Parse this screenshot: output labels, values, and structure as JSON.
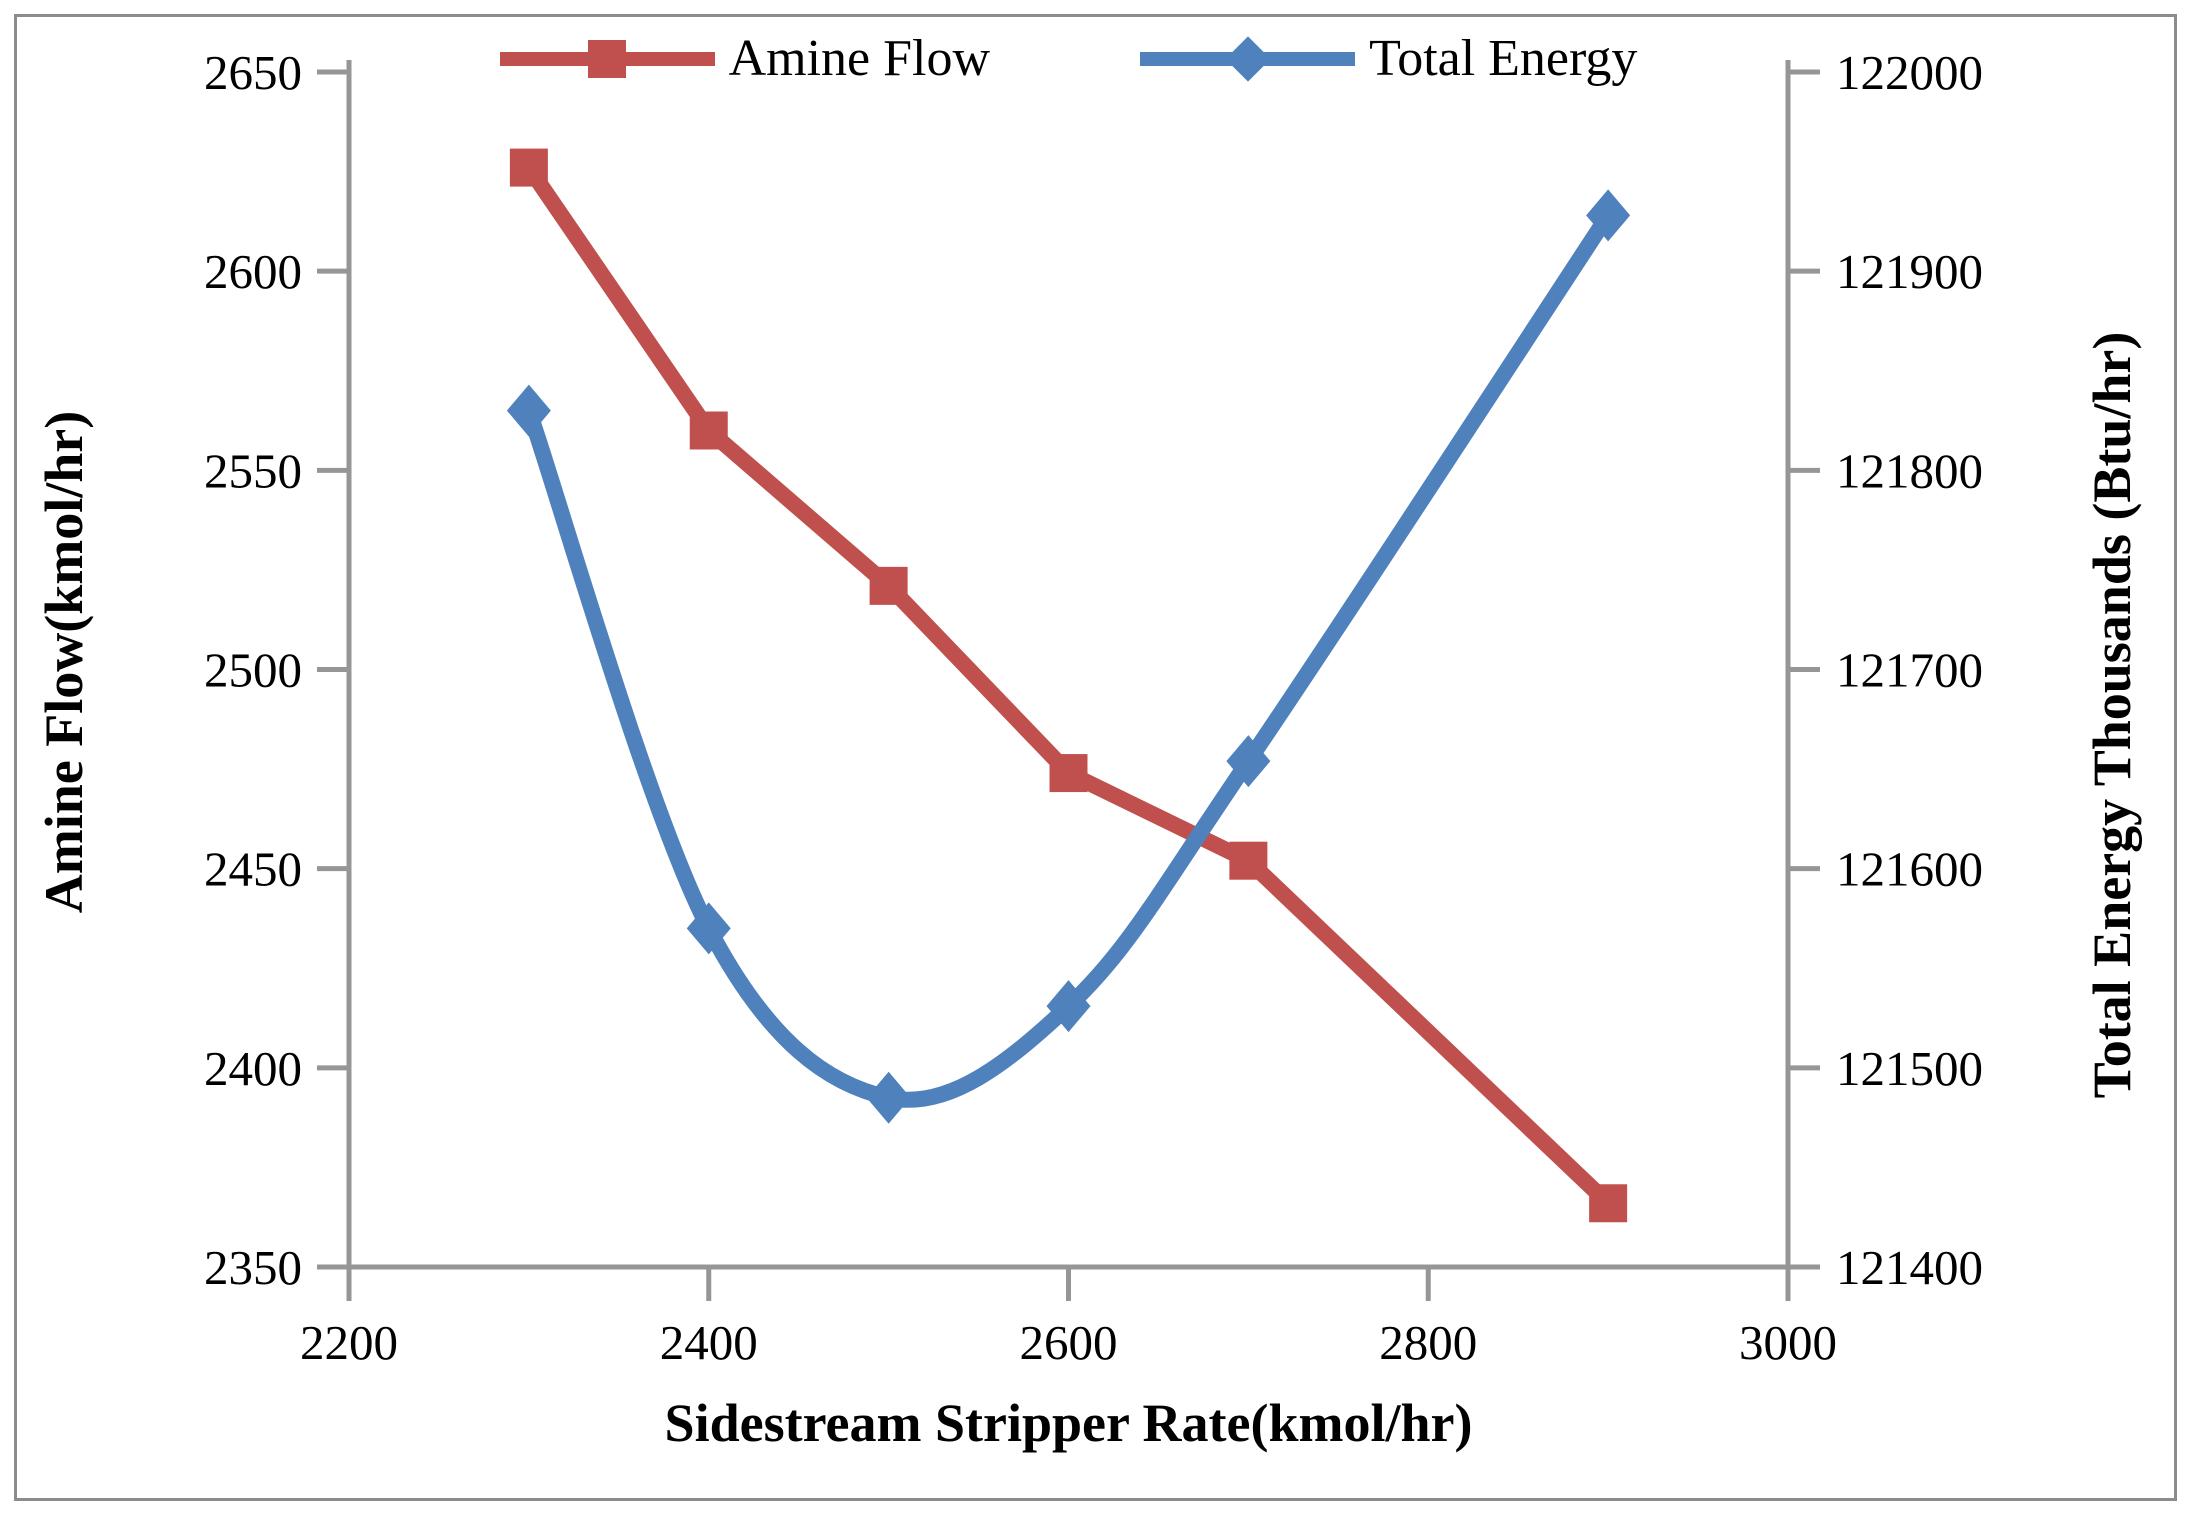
{
  "figure": {
    "background": "#FFFFFF",
    "border_color": "#8C8C8C"
  },
  "style": {
    "axis_color": "#969696",
    "text_color": "#000000",
    "red_series_color": "#C0504D",
    "blue_series_color": "#4F81BD"
  },
  "legend": {
    "items": [
      {
        "label": "Amine Flow",
        "color": "#C0504D",
        "marker": "square"
      },
      {
        "label": "Total Energy",
        "color": "#4F81BD",
        "marker": "diamond"
      }
    ]
  },
  "axes": {
    "x": {
      "title": "Sidestream Stripper Rate(kmol/hr)",
      "min": 2200,
      "max": 3000,
      "ticks": [
        2200,
        2400,
        2600,
        2800,
        3000
      ]
    },
    "y_left": {
      "title": "Amine Flow(kmol/hr)",
      "min": 2350,
      "max": 2650,
      "ticks": [
        2350,
        2400,
        2450,
        2500,
        2550,
        2600,
        2650
      ]
    },
    "y_right": {
      "title": "Total Energy Thousands (Btu/hr)",
      "min": 121400,
      "max": 122000,
      "ticks": [
        121400,
        121500,
        121600,
        121700,
        121800,
        121900,
        122000
      ]
    }
  },
  "chart_data": {
    "type": "line",
    "title": "",
    "xlabel": "Sidestream Stripper Rate(kmol/hr)",
    "ylabel_left": "Amine Flow(kmol/hr)",
    "ylabel_right": "Total Energy Thousands (Btu/hr)",
    "x": [
      2300,
      2400,
      2500,
      2600,
      2700,
      2900
    ],
    "series": [
      {
        "name": "Amine Flow",
        "axis": "left",
        "color": "#C0504D",
        "marker": "square",
        "smooth": false,
        "values": [
          2626,
          2560,
          2521,
          2474,
          2452,
          2366
        ]
      },
      {
        "name": "Total Energy",
        "axis": "right",
        "color": "#4F81BD",
        "marker": "diamond",
        "smooth": true,
        "values": [
          121830,
          121570,
          121485,
          121531,
          121654,
          121928
        ]
      }
    ],
    "xlim": [
      2200,
      3000
    ],
    "ylim_left": [
      2350,
      2650
    ],
    "ylim_right": [
      121400,
      122000
    ],
    "grid": false,
    "legend_position": "top"
  }
}
